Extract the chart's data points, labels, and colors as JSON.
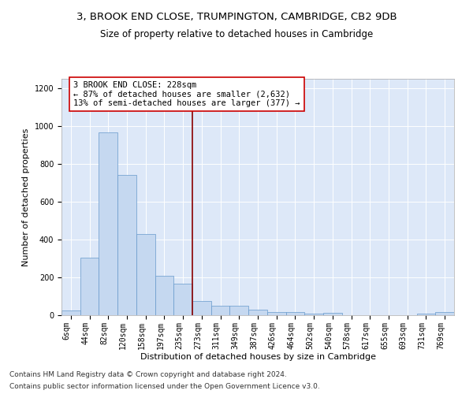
{
  "title_line1": "3, BROOK END CLOSE, TRUMPINGTON, CAMBRIDGE, CB2 9DB",
  "title_line2": "Size of property relative to detached houses in Cambridge",
  "xlabel": "Distribution of detached houses by size in Cambridge",
  "ylabel": "Number of detached properties",
  "bin_labels": [
    "6sqm",
    "44sqm",
    "82sqm",
    "120sqm",
    "158sqm",
    "197sqm",
    "235sqm",
    "273sqm",
    "311sqm",
    "349sqm",
    "387sqm",
    "426sqm",
    "464sqm",
    "502sqm",
    "540sqm",
    "578sqm",
    "617sqm",
    "655sqm",
    "693sqm",
    "731sqm",
    "769sqm"
  ],
  "bar_values": [
    25,
    305,
    965,
    740,
    430,
    210,
    165,
    75,
    48,
    48,
    30,
    18,
    15,
    10,
    13,
    2,
    0,
    0,
    0,
    10,
    15
  ],
  "bar_color": "#c5d8f0",
  "bar_edge_color": "#6699cc",
  "vline_index": 6,
  "vline_color": "#8b0000",
  "annotation_text": "3 BROOK END CLOSE: 228sqm\n← 87% of detached houses are smaller (2,632)\n13% of semi-detached houses are larger (377) →",
  "annotation_box_color": "#ffffff",
  "annotation_box_edge": "#cc0000",
  "ylim": [
    0,
    1250
  ],
  "yticks": [
    0,
    200,
    400,
    600,
    800,
    1000,
    1200
  ],
  "background_color": "#dde8f8",
  "footer_line1": "Contains HM Land Registry data © Crown copyright and database right 2024.",
  "footer_line2": "Contains public sector information licensed under the Open Government Licence v3.0.",
  "title_fontsize": 9.5,
  "subtitle_fontsize": 8.5,
  "axis_label_fontsize": 8,
  "tick_fontsize": 7,
  "annotation_fontsize": 7.5,
  "footer_fontsize": 6.5
}
